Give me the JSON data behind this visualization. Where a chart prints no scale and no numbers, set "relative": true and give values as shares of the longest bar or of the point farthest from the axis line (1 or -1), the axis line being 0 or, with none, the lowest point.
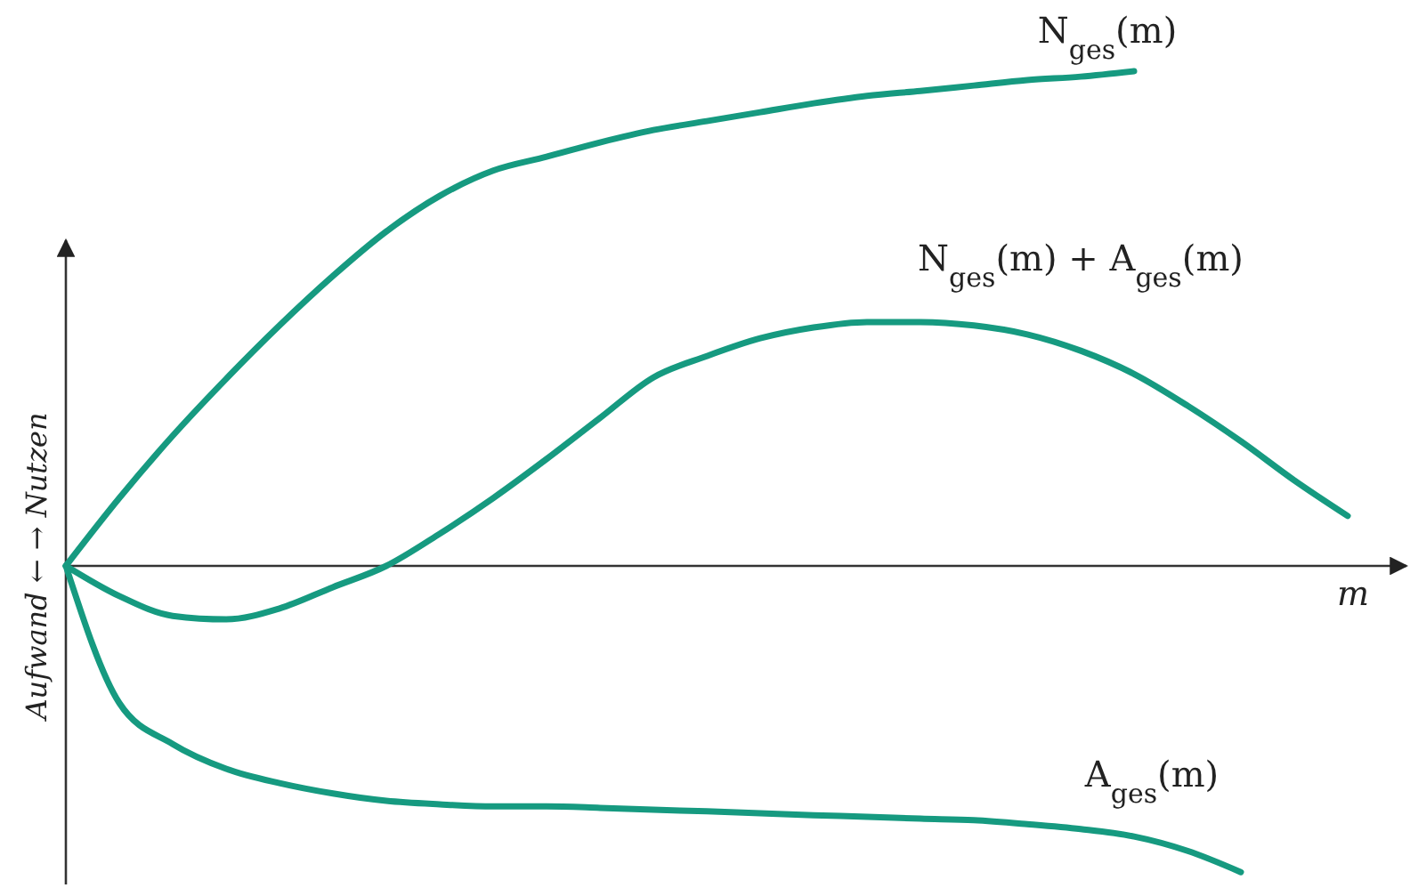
{
  "chart_data": {
    "type": "line",
    "relative": true,
    "xlabel": "m",
    "ylabel": "Aufwand ← → Nutzen",
    "marker": "none",
    "line_style": "solid",
    "categories": [
      null,
      null,
      null,
      null,
      null,
      null,
      null,
      null,
      null,
      null,
      null,
      null,
      null,
      null,
      null,
      null,
      null,
      null,
      null,
      null,
      null,
      null,
      null,
      null,
      null
    ],
    "series": [
      {
        "name": "N$_{ges}$(m)",
        "color": "#169a80",
        "values": [
          0,
          0.137,
          0.263,
          0.378,
          0.486,
          0.586,
          0.676,
          0.748,
          0.799,
          0.827,
          0.856,
          0.881,
          0.899,
          0.917,
          0.935,
          0.95,
          0.96,
          0.971,
          0.982,
          0.989,
          1,
          null,
          null,
          null,
          null
        ]
      },
      {
        "name": "N$_{ges}$(m) + A$_{ges}$(m)",
        "color": "#169a80",
        "values": [
          0,
          -0.061,
          -0.101,
          -0.108,
          -0.086,
          -0.043,
          0,
          0.065,
          0.137,
          0.216,
          0.299,
          0.381,
          0.424,
          0.46,
          0.482,
          0.493,
          0.493,
          0.486,
          0.468,
          0.435,
          0.388,
          0.324,
          0.252,
          0.173,
          0.101
        ]
      },
      {
        "name": "A$_{ges}$(m)",
        "color": "#169a80",
        "values": [
          0,
          -0.277,
          -0.36,
          -0.41,
          -0.439,
          -0.46,
          -0.475,
          -0.482,
          -0.486,
          -0.486,
          -0.489,
          -0.493,
          -0.496,
          -0.5,
          -0.504,
          -0.507,
          -0.511,
          -0.514,
          -0.522,
          -0.532,
          -0.547,
          -0.576,
          -0.619,
          null,
          null
        ]
      }
    ]
  }
}
